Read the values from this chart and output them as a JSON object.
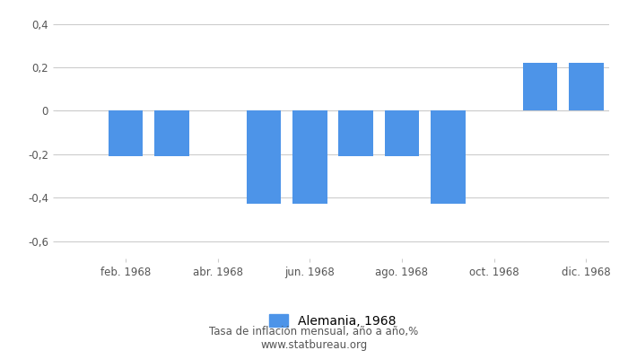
{
  "month_nums": [
    1,
    2,
    3,
    4,
    5,
    6,
    7,
    8,
    9,
    10,
    11,
    12
  ],
  "values": [
    0,
    -0.21,
    -0.21,
    0,
    -0.43,
    -0.43,
    -0.21,
    -0.21,
    -0.43,
    0,
    0.22,
    0.22
  ],
  "bar_color": "#4d94e8",
  "xtick_labels": [
    "feb. 1968",
    "abr. 1968",
    "jun. 1968",
    "ago. 1968",
    "oct. 1968",
    "dic. 1968"
  ],
  "xtick_positions": [
    2,
    4,
    6,
    8,
    10,
    12
  ],
  "ytick_labels": [
    "0,4",
    "0,2",
    "0",
    "-0,2",
    "-0,4",
    "-0,6"
  ],
  "ytick_values": [
    0.4,
    0.2,
    0.0,
    -0.2,
    -0.4,
    -0.6
  ],
  "ylim": [
    -0.68,
    0.46
  ],
  "xlim": [
    0.5,
    12.5
  ],
  "bar_width": 0.75,
  "title": "Tasa de inflación mensual, año a año,%",
  "subtitle": "www.statbureau.org",
  "legend_label": "Alemania, 1968",
  "grid_color": "#cccccc",
  "background_color": "#ffffff",
  "tick_color": "#888888",
  "text_color": "#555555"
}
